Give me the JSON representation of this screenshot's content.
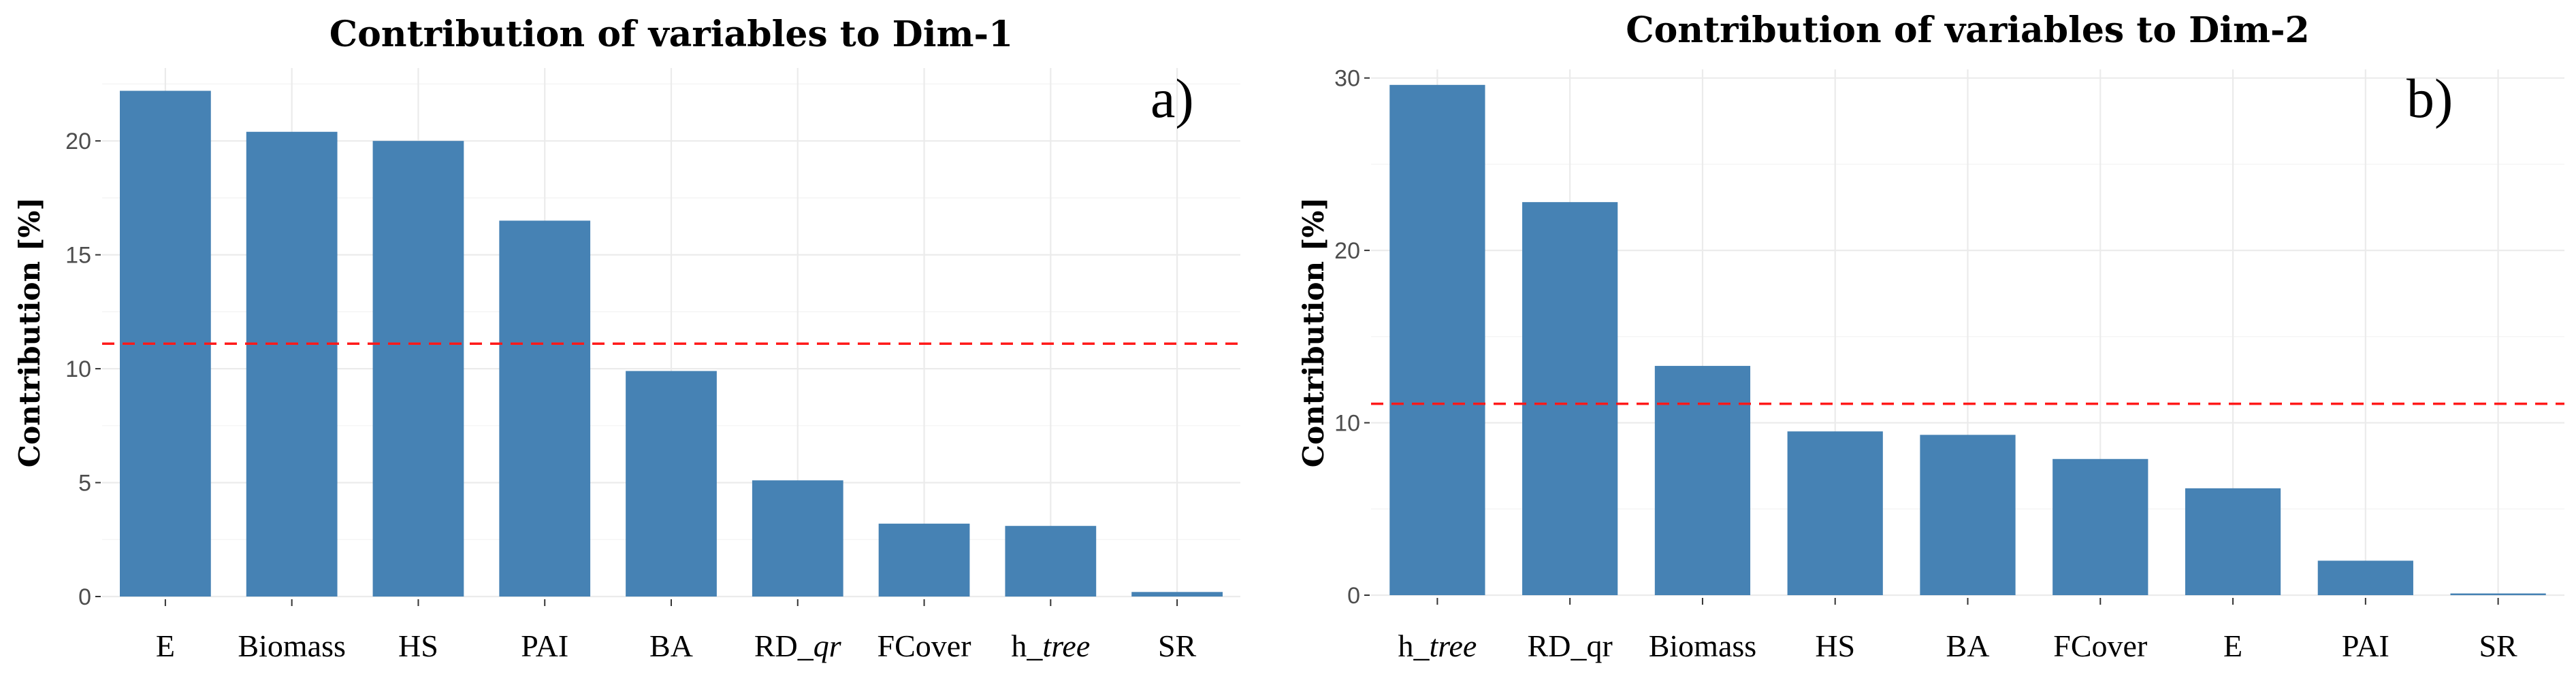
{
  "chart_data": [
    {
      "type": "bar",
      "title": "Contribution of variables to Dim-1",
      "panel_label": "a)",
      "ylabel": "Contribution [%]",
      "xlabel": "",
      "categories": [
        "E",
        "Biomass",
        "HS",
        "PAI",
        "BA",
        "RD_qr",
        "FCover",
        "h_tree",
        "SR"
      ],
      "category_labels": [
        {
          "text": "E"
        },
        {
          "text": "Biomass"
        },
        {
          "text": "HS"
        },
        {
          "text": "PAI"
        },
        {
          "text": "BA"
        },
        {
          "text": "RD_",
          "italic": "qr"
        },
        {
          "text": "FCover"
        },
        {
          "text": "h_",
          "italic": "tree"
        },
        {
          "text": "SR"
        }
      ],
      "values": [
        22.2,
        20.4,
        20.0,
        16.5,
        9.9,
        5.1,
        3.2,
        3.1,
        0.2
      ],
      "reference_line": 11.1,
      "ylim": [
        0,
        23.2
      ],
      "yticks": [
        0,
        5,
        10,
        15,
        20
      ],
      "bar_color": "#4682b4",
      "reference_color": "#ff1a1a"
    },
    {
      "type": "bar",
      "title": "Contribution of variables to Dim-2",
      "panel_label": "b)",
      "ylabel": "Contribution [%]",
      "xlabel": "",
      "categories": [
        "h_tree",
        "RD_qr",
        "Biomass",
        "HS",
        "BA",
        "FCover",
        "E",
        "PAI",
        "SR"
      ],
      "category_labels": [
        {
          "text": "h_",
          "italic": "tree"
        },
        {
          "text": "RD_qr"
        },
        {
          "text": "Biomass"
        },
        {
          "text": "HS"
        },
        {
          "text": "BA"
        },
        {
          "text": "FCover"
        },
        {
          "text": "E"
        },
        {
          "text": "PAI"
        },
        {
          "text": "SR"
        }
      ],
      "values": [
        29.6,
        22.8,
        13.3,
        9.5,
        9.3,
        7.9,
        6.2,
        2.0,
        0.1
      ],
      "reference_line": 11.1,
      "ylim": [
        0,
        30.5
      ],
      "yticks": [
        0,
        10,
        20,
        30
      ],
      "bar_color": "#4682b4",
      "reference_color": "#ff1a1a"
    }
  ]
}
